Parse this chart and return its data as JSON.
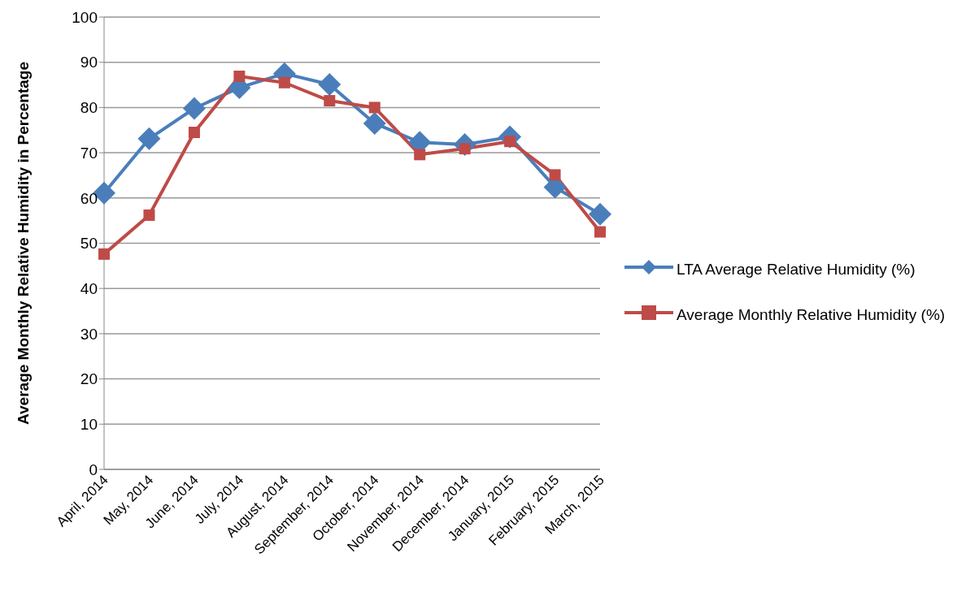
{
  "chart_data": {
    "type": "line",
    "ylabel": "Average Monthly Relative Humidity in Percentage",
    "categories": [
      "April, 2014",
      "May, 2014",
      "June, 2014",
      "July, 2014",
      "August, 2014",
      "September, 2014",
      "October, 2014",
      "November, 2014",
      "December, 2014",
      "January, 2015",
      "February, 2015",
      "March, 2015"
    ],
    "series": [
      {
        "name": "LTA Average Relative Humidity (%)",
        "color": "#4a7ebb",
        "marker": "diamond",
        "values": [
          61.1,
          73.1,
          79.8,
          84.4,
          87.5,
          85.1,
          76.5,
          72.3,
          71.8,
          73.5,
          62.4,
          56.4
        ]
      },
      {
        "name": "Average Monthly Relative Humidity (%)",
        "color": "#be4b48",
        "marker": "square",
        "values": [
          47.6,
          56.2,
          74.5,
          86.9,
          85.5,
          81.5,
          80,
          69.6,
          70.9,
          72.5,
          65.1,
          52.5
        ]
      }
    ],
    "ylim": [
      0,
      100
    ],
    "yticks": [
      0,
      10,
      20,
      30,
      40,
      50,
      60,
      70,
      80,
      90,
      100
    ],
    "grid": "y",
    "legend": "right"
  }
}
